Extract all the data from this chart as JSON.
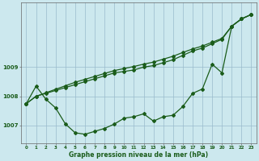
{
  "xlabel": "Graphe pression niveau de la mer (hPa)",
  "bg_color": "#cce8ee",
  "grid_color": "#99bbcc",
  "line_color": "#1a5c1a",
  "x_values": [
    0,
    1,
    2,
    3,
    4,
    5,
    6,
    7,
    8,
    9,
    10,
    11,
    12,
    13,
    14,
    15,
    16,
    17,
    18,
    19,
    20,
    21,
    22,
    23
  ],
  "series1": [
    1007.75,
    1008.35,
    1007.9,
    1007.6,
    1007.05,
    1006.75,
    1006.7,
    1006.8,
    1006.9,
    1007.05,
    1007.25,
    1007.3,
    1007.4,
    1007.15,
    1007.3,
    1007.35,
    1007.65,
    1008.1,
    1008.25,
    1009.1,
    1008.8,
    1010.4,
    1010.65,
    1010.8
  ],
  "series2": [
    1007.75,
    1008.0,
    1008.1,
    1008.2,
    1008.3,
    1008.4,
    1008.5,
    1008.6,
    1008.7,
    1008.8,
    1008.85,
    1008.9,
    1009.0,
    1009.05,
    1009.15,
    1009.25,
    1009.4,
    1009.55,
    1009.65,
    1009.8,
    1009.95,
    1010.4,
    1010.65,
    1010.8
  ],
  "series3": [
    1007.75,
    1008.0,
    1008.12,
    1008.24,
    1008.36,
    1008.48,
    1008.58,
    1008.68,
    1008.78,
    1008.88,
    1008.95,
    1009.02,
    1009.1,
    1009.17,
    1009.27,
    1009.37,
    1009.5,
    1009.62,
    1009.72,
    1009.85,
    1009.98,
    1010.4,
    1010.65,
    1010.8
  ],
  "ylim_min": 1006.4,
  "ylim_max": 1011.2,
  "yticks": [
    1007,
    1008,
    1009
  ],
  "marker": "D",
  "marker_size": 2.0,
  "linewidth": 0.9
}
